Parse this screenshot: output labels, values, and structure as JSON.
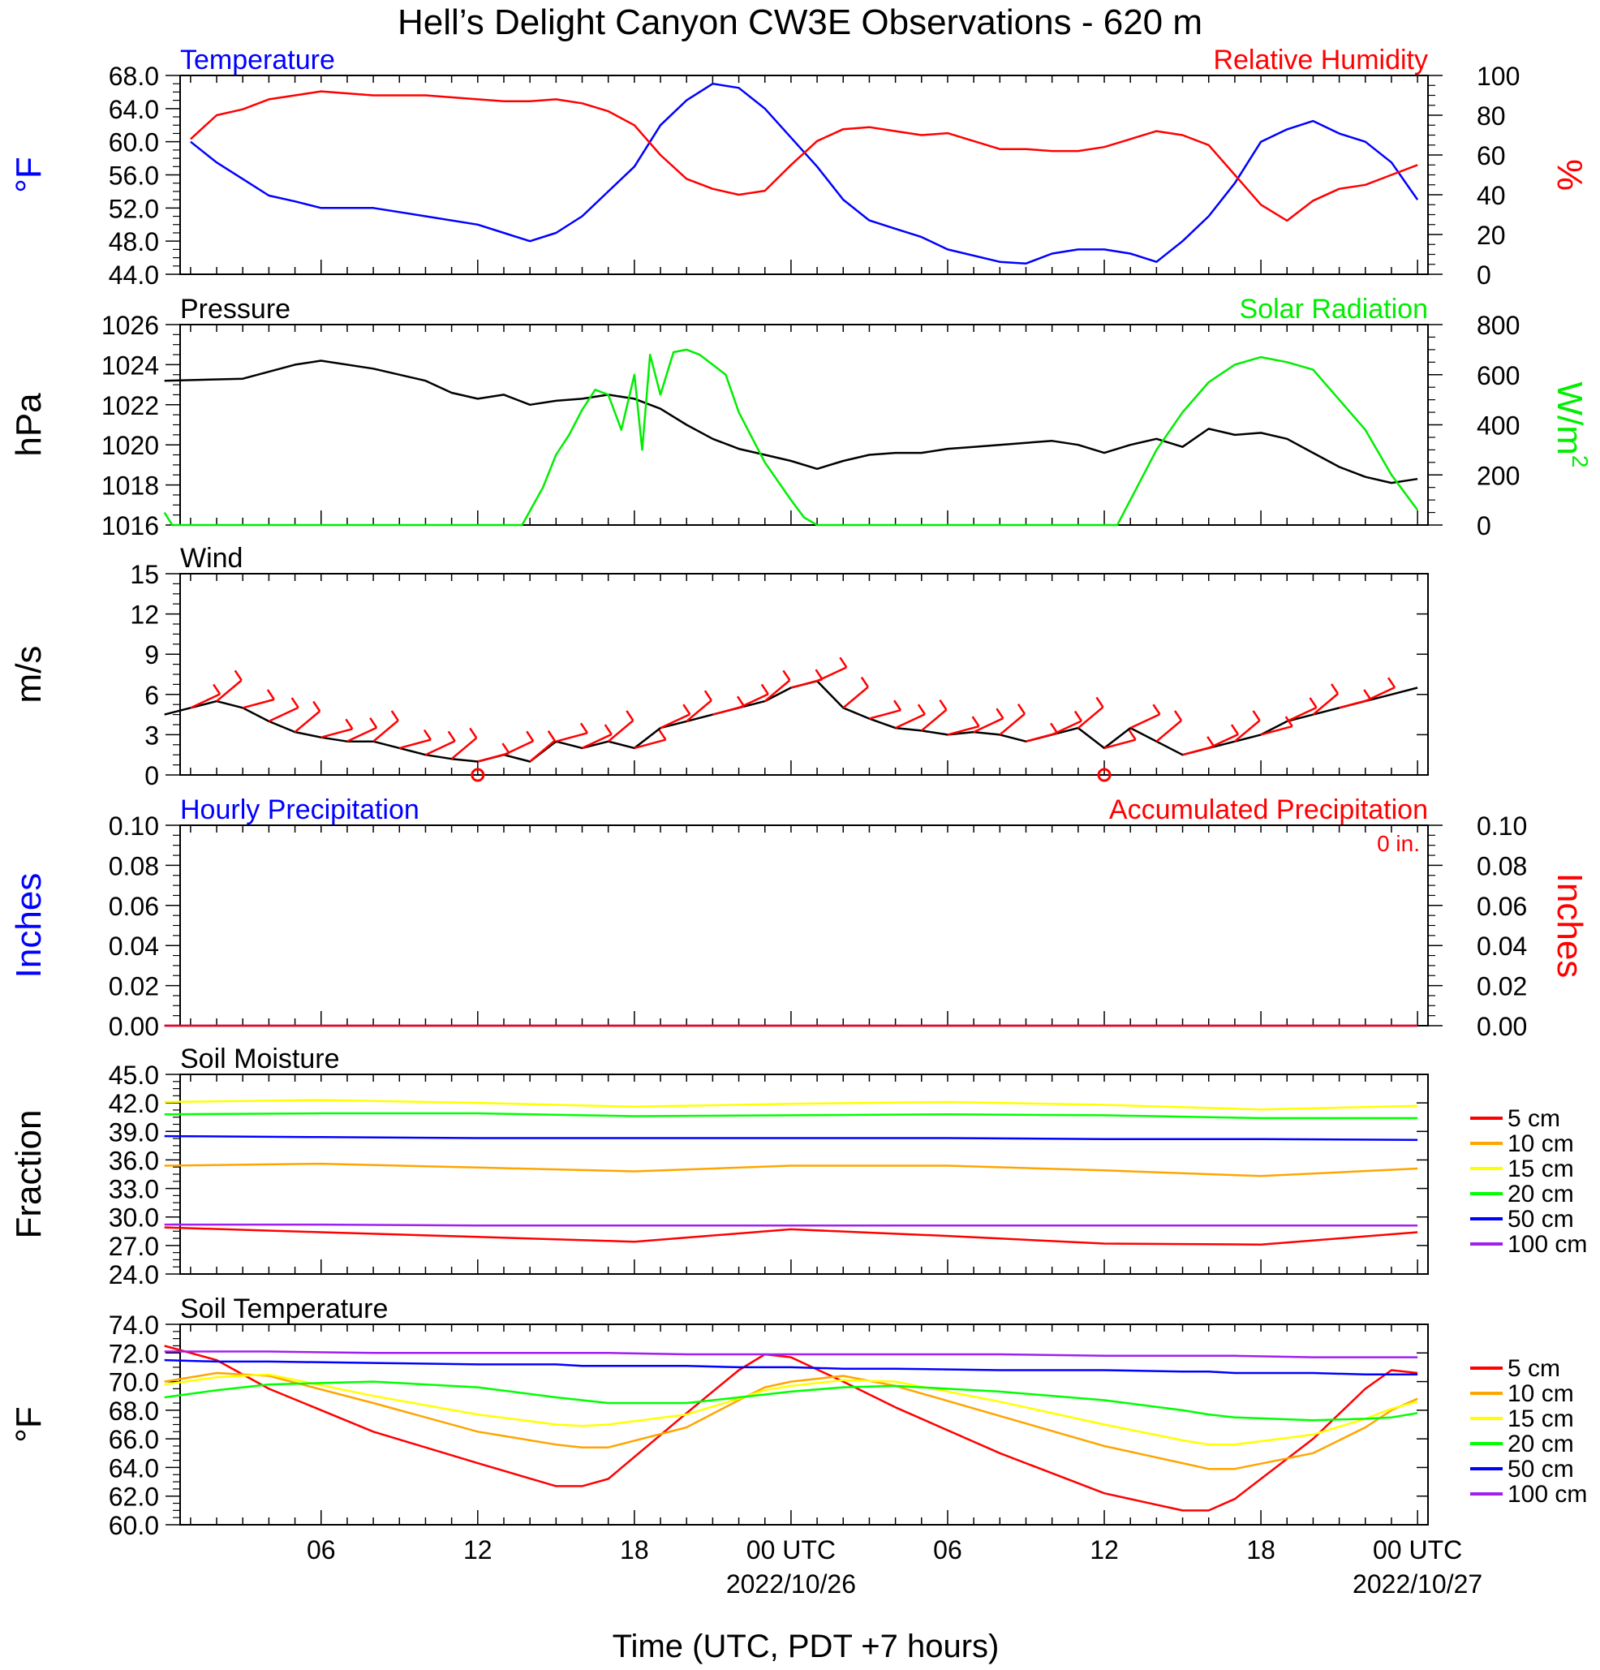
{
  "title": "Hell’s Delight Canyon CW3E Observations - 620 m",
  "colors": {
    "temperature": "#0000ff",
    "humidity": "#ff0000",
    "pressure": "#000000",
    "solar": "#00ee00",
    "wind": "#000000",
    "barb": "#ff0000",
    "hourly_precip": "#0000ff",
    "accum_precip": "#ff0000",
    "d5": "#ff0000",
    "d10": "#ffa500",
    "d15": "#ffff00",
    "d20": "#00ff00",
    "d50": "#0000ff",
    "d100": "#a020f0"
  },
  "x_axis": {
    "label": "Time (UTC, PDT +7 hours)",
    "tick_labels": [
      "06",
      "12",
      "18",
      "00 UTC",
      "06",
      "12",
      "18",
      "00 UTC"
    ],
    "date_labels": [
      "2022/10/26",
      "2022/10/27"
    ]
  },
  "legend": [
    "5 cm",
    "10 cm",
    "15 cm",
    "20 cm",
    "50 cm",
    "100 cm"
  ],
  "chart_data": [
    {
      "type": "line",
      "panel": "temperature_humidity",
      "left_title": "Temperature",
      "right_title": "Relative Humidity",
      "ylabel_left": "°F",
      "ylabel_right": "%",
      "ylim_left": [
        44,
        68
      ],
      "ylim_right": [
        0,
        100
      ],
      "yticks_left": [
        "44.0",
        "48.0",
        "52.0",
        "56.0",
        "60.0",
        "64.0",
        "68.0"
      ],
      "yticks_right": [
        "0",
        "20",
        "40",
        "60",
        "80",
        "100"
      ],
      "x_hours": [
        1,
        2,
        3,
        4,
        5,
        6,
        8,
        10,
        12,
        13,
        14,
        15,
        16,
        17,
        18,
        19,
        20,
        21,
        22,
        23,
        24,
        25,
        26,
        27,
        28,
        29,
        30,
        32,
        33,
        34,
        35,
        36,
        37,
        38,
        39,
        40,
        41,
        42,
        43,
        44,
        45,
        46,
        47,
        48
      ],
      "series": [
        {
          "name": "Temperature",
          "axis": "left",
          "values": [
            60.0,
            57.5,
            55.5,
            53.5,
            52.8,
            52.0,
            52.0,
            51.0,
            50.0,
            49.0,
            48.0,
            49.0,
            51.0,
            54.0,
            57.0,
            62.0,
            65.0,
            67.0,
            66.5,
            64.0,
            60.5,
            57.0,
            53.0,
            50.5,
            49.5,
            48.5,
            47.0,
            45.5,
            45.3,
            46.5,
            47.0,
            47.0,
            46.5,
            45.5,
            48.0,
            51.0,
            55.0,
            60.0,
            61.5,
            62.5,
            61.0,
            60.0,
            57.5,
            53.0
          ]
        },
        {
          "name": "Relative Humidity",
          "axis": "right",
          "values": [
            68.0,
            80.0,
            83.0,
            88.0,
            90.0,
            92.0,
            90.0,
            90.0,
            88.0,
            87.0,
            87.0,
            88.0,
            86.0,
            82.0,
            75.0,
            60.0,
            48.0,
            43.0,
            40.0,
            42.0,
            55.0,
            67.0,
            73.0,
            74.0,
            72.0,
            70.0,
            71.0,
            63.0,
            63.0,
            62.0,
            62.0,
            64.0,
            68.0,
            72.0,
            70.0,
            65.0,
            50.0,
            35.0,
            27.0,
            37.0,
            43.0,
            45.0,
            50.0,
            55.0
          ]
        }
      ]
    },
    {
      "type": "line",
      "panel": "pressure_solar",
      "left_title": "Pressure",
      "right_title": "Solar Radiation",
      "ylabel_left": "hPa",
      "ylabel_right": "W/m",
      "ylabel_right_sup": "2",
      "ylim_left": [
        1016,
        1026
      ],
      "ylim_right": [
        0,
        800
      ],
      "yticks_left": [
        "1016",
        "1018",
        "1020",
        "1022",
        "1024",
        "1026"
      ],
      "yticks_right": [
        "0",
        "200",
        "400",
        "600",
        "800"
      ],
      "series": [
        {
          "name": "Pressure",
          "axis": "left",
          "x_hours": [
            0,
            3,
            5,
            6,
            8,
            10,
            11,
            12,
            13,
            14,
            15,
            16,
            17,
            18,
            19,
            20,
            21,
            22,
            23,
            24,
            25,
            26,
            27,
            28,
            29,
            30,
            31,
            32,
            33,
            34,
            35,
            36,
            37,
            38,
            39,
            40,
            41,
            42,
            43,
            44,
            45,
            46,
            47,
            48
          ],
          "values": [
            1023.2,
            1023.3,
            1024.0,
            1024.2,
            1023.8,
            1023.2,
            1022.6,
            1022.3,
            1022.5,
            1022.0,
            1022.2,
            1022.3,
            1022.5,
            1022.3,
            1021.8,
            1021.0,
            1020.3,
            1019.8,
            1019.5,
            1019.2,
            1018.8,
            1019.2,
            1019.5,
            1019.6,
            1019.6,
            1019.8,
            1019.9,
            1020.0,
            1020.1,
            1020.2,
            1020.0,
            1019.6,
            1020.0,
            1020.3,
            1019.9,
            1020.8,
            1020.5,
            1020.6,
            1020.3,
            1019.6,
            1018.9,
            1018.4,
            1018.1,
            1018.3
          ]
        },
        {
          "name": "Solar Radiation",
          "axis": "right",
          "x_hours": [
            0,
            0.3,
            13.7,
            14.5,
            15.0,
            15.5,
            16.0,
            16.5,
            17.0,
            17.5,
            18.0,
            18.3,
            18.6,
            19.0,
            19.5,
            20.0,
            20.5,
            21.0,
            21.5,
            22.0,
            22.5,
            23.0,
            24.0,
            24.5,
            25.0,
            36.5,
            37.0,
            38.0,
            39.0,
            40.0,
            41.0,
            42.0,
            43.0,
            44.0,
            45.0,
            46.0,
            47.0,
            48.0
          ],
          "values": [
            50,
            0,
            0,
            150,
            280,
            360,
            460,
            540,
            520,
            380,
            600,
            300,
            680,
            520,
            690,
            700,
            680,
            640,
            600,
            450,
            350,
            250,
            100,
            30,
            0,
            0,
            100,
            300,
            450,
            570,
            640,
            670,
            650,
            620,
            500,
            380,
            200,
            60
          ]
        }
      ]
    },
    {
      "type": "line",
      "panel": "wind",
      "left_title": "Wind",
      "ylabel_left": "m/s",
      "ylim_left": [
        0,
        15
      ],
      "yticks_left": [
        "0",
        "3",
        "6",
        "9",
        "12",
        "15"
      ],
      "x_hours": [
        0,
        1,
        2,
        3,
        4,
        5,
        6,
        7,
        8,
        9,
        10,
        11,
        12,
        13,
        14,
        15,
        16,
        17,
        18,
        19,
        20,
        21,
        22,
        23,
        24,
        25,
        26,
        27,
        28,
        29,
        30,
        31,
        32,
        33,
        34,
        35,
        36,
        37,
        38,
        39,
        40,
        41,
        42,
        43,
        44,
        45,
        46,
        47,
        48
      ],
      "series": [
        {
          "name": "Wind speed",
          "values": [
            4.5,
            5.0,
            5.5,
            5.0,
            4.0,
            3.2,
            2.8,
            2.5,
            2.5,
            2.0,
            1.5,
            1.2,
            1.0,
            1.5,
            1.0,
            2.5,
            2.0,
            2.5,
            2.0,
            3.5,
            4.0,
            4.5,
            5.0,
            5.5,
            6.5,
            7.0,
            5.0,
            4.2,
            3.5,
            3.3,
            3.0,
            3.2,
            3.0,
            2.5,
            3.0,
            3.5,
            2.0,
            3.5,
            2.5,
            1.5,
            2.0,
            2.5,
            3.0,
            4.0,
            4.5,
            5.0,
            5.5,
            6.0,
            6.5
          ]
        }
      ],
      "barbs_at_hours": [
        1,
        2,
        3,
        4,
        5,
        6,
        7,
        8,
        9,
        10,
        11,
        12,
        13,
        14,
        15,
        16,
        17,
        18,
        19,
        20,
        21,
        22,
        23,
        24,
        25,
        26,
        27,
        28,
        29,
        30,
        31,
        32,
        33,
        34,
        35,
        36,
        37,
        38,
        39,
        40,
        41,
        42,
        43,
        44,
        45,
        46
      ],
      "calm_at_hours": [
        12,
        36
      ]
    },
    {
      "type": "line",
      "panel": "precipitation",
      "left_title": "Hourly Precipitation",
      "right_title": "Accumulated Precipitation",
      "annotation": "0 in.",
      "ylabel_left": "Inches",
      "ylabel_right": "Inches",
      "ylim_left": [
        0,
        0.1
      ],
      "ylim_right": [
        0,
        0.1
      ],
      "yticks_left": [
        "0.00",
        "0.02",
        "0.04",
        "0.06",
        "0.08",
        "0.10"
      ],
      "yticks_right": [
        "0.00",
        "0.02",
        "0.04",
        "0.06",
        "0.08",
        "0.10"
      ],
      "x_hours": [
        0,
        48
      ],
      "series": [
        {
          "name": "Hourly Precipitation",
          "axis": "left",
          "values": [
            0,
            0
          ]
        },
        {
          "name": "Accumulated Precipitation",
          "axis": "right",
          "values": [
            0,
            0
          ]
        }
      ]
    },
    {
      "type": "line",
      "panel": "soil_moisture",
      "left_title": "Soil Moisture",
      "ylabel_left": "Fraction",
      "ylim_left": [
        24,
        45
      ],
      "yticks_left": [
        "24.0",
        "27.0",
        "30.0",
        "33.0",
        "36.0",
        "39.0",
        "42.0",
        "45.0"
      ],
      "x_hours": [
        0,
        6,
        12,
        18,
        24,
        30,
        36,
        42,
        48
      ],
      "series": [
        {
          "name": "5 cm",
          "values": [
            28.9,
            28.4,
            27.9,
            27.4,
            28.7,
            28.0,
            27.2,
            27.1,
            28.4
          ]
        },
        {
          "name": "10 cm",
          "values": [
            35.4,
            35.6,
            35.2,
            34.8,
            35.4,
            35.4,
            34.9,
            34.3,
            35.1
          ]
        },
        {
          "name": "15 cm",
          "values": [
            42.1,
            42.3,
            42.0,
            41.6,
            41.9,
            42.1,
            41.8,
            41.3,
            41.7
          ]
        },
        {
          "name": "20 cm",
          "values": [
            40.8,
            40.9,
            40.9,
            40.6,
            40.7,
            40.8,
            40.7,
            40.4,
            40.4
          ]
        },
        {
          "name": "50 cm",
          "values": [
            38.5,
            38.4,
            38.3,
            38.3,
            38.3,
            38.3,
            38.2,
            38.2,
            38.1
          ]
        },
        {
          "name": "100 cm",
          "values": [
            29.2,
            29.2,
            29.1,
            29.1,
            29.1,
            29.1,
            29.1,
            29.1,
            29.1
          ]
        }
      ]
    },
    {
      "type": "line",
      "panel": "soil_temperature",
      "left_title": "Soil Temperature",
      "ylabel_left": "°F",
      "ylim_left": [
        60,
        74
      ],
      "yticks_left": [
        "60.0",
        "62.0",
        "64.0",
        "66.0",
        "68.0",
        "70.0",
        "72.0",
        "74.0"
      ],
      "x_hours": [
        0,
        2,
        4,
        8,
        12,
        15,
        16,
        17,
        20,
        22,
        23,
        24,
        26,
        28,
        32,
        36,
        39,
        40,
        41,
        44,
        46,
        47,
        48
      ],
      "series": [
        {
          "name": "5 cm",
          "values": [
            72.5,
            71.5,
            69.5,
            66.5,
            64.3,
            62.7,
            62.7,
            63.2,
            67.8,
            70.8,
            71.9,
            71.7,
            70.0,
            68.2,
            65.0,
            62.2,
            61.0,
            61.0,
            61.8,
            66.0,
            69.5,
            70.8,
            70.6
          ]
        },
        {
          "name": "10 cm",
          "values": [
            70.0,
            70.6,
            70.4,
            68.5,
            66.5,
            65.6,
            65.4,
            65.4,
            66.8,
            68.7,
            69.6,
            70.0,
            70.4,
            69.7,
            67.6,
            65.5,
            64.3,
            63.9,
            63.9,
            65.0,
            66.8,
            68.0,
            68.8
          ]
        },
        {
          "name": "15 cm",
          "values": [
            69.8,
            70.3,
            70.5,
            69.0,
            67.7,
            67.0,
            66.9,
            67.0,
            67.7,
            68.8,
            69.4,
            69.7,
            70.1,
            70.0,
            68.6,
            67.0,
            65.9,
            65.6,
            65.6,
            66.3,
            67.4,
            68.1,
            68.6
          ]
        },
        {
          "name": "20 cm",
          "values": [
            68.9,
            69.4,
            69.8,
            70.0,
            69.6,
            68.9,
            68.7,
            68.5,
            68.5,
            68.9,
            69.1,
            69.3,
            69.6,
            69.7,
            69.3,
            68.7,
            68.0,
            67.7,
            67.5,
            67.3,
            67.4,
            67.5,
            67.8
          ]
        },
        {
          "name": "50 cm",
          "values": [
            71.5,
            71.4,
            71.4,
            71.3,
            71.2,
            71.2,
            71.1,
            71.1,
            71.1,
            71.0,
            71.0,
            71.0,
            70.9,
            70.9,
            70.8,
            70.8,
            70.7,
            70.7,
            70.6,
            70.6,
            70.5,
            70.5,
            70.5
          ]
        },
        {
          "name": "100 cm",
          "values": [
            72.1,
            72.1,
            72.1,
            72.0,
            72.0,
            72.0,
            72.0,
            72.0,
            71.9,
            71.9,
            71.9,
            71.9,
            71.9,
            71.9,
            71.9,
            71.8,
            71.8,
            71.8,
            71.8,
            71.7,
            71.7,
            71.7,
            71.7
          ]
        }
      ]
    }
  ]
}
